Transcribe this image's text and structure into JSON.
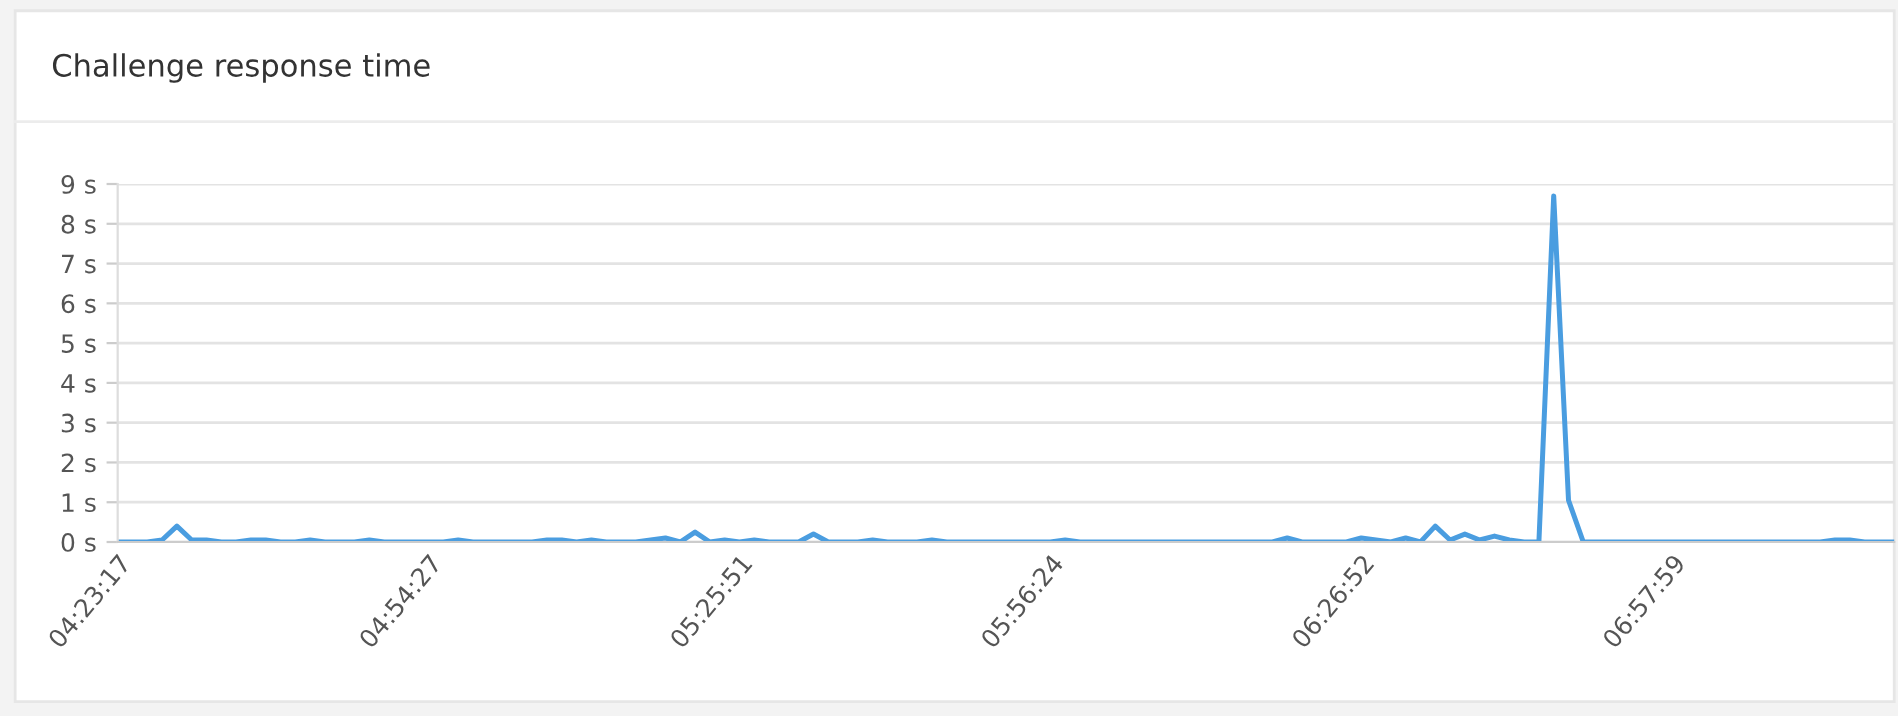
{
  "chart_data": {
    "type": "line",
    "title": "Challenge response time",
    "categories": [
      "04:23:17",
      null,
      null,
      null,
      null,
      null,
      null,
      null,
      null,
      null,
      null,
      null,
      null,
      null,
      null,
      null,
      null,
      null,
      null,
      null,
      null,
      "04:54:27",
      null,
      null,
      null,
      null,
      null,
      null,
      null,
      null,
      null,
      null,
      null,
      null,
      null,
      null,
      null,
      null,
      null,
      null,
      null,
      null,
      "05:25:51",
      null,
      null,
      null,
      null,
      null,
      null,
      null,
      null,
      null,
      null,
      null,
      null,
      null,
      null,
      null,
      null,
      null,
      null,
      null,
      null,
      "05:56:24",
      null,
      null,
      null,
      null,
      null,
      null,
      null,
      null,
      null,
      null,
      null,
      null,
      null,
      null,
      null,
      null,
      null,
      null,
      null,
      null,
      "06:26:52",
      null,
      null,
      null,
      null,
      null,
      null,
      null,
      null,
      null,
      null,
      null,
      null,
      null,
      null,
      null,
      null,
      null,
      null,
      null,
      null,
      "06:57:59",
      null,
      null,
      null,
      null,
      null,
      null,
      null,
      null,
      null,
      null,
      null,
      null,
      null,
      null,
      null
    ],
    "series": [
      {
        "color": "#4a9de0",
        "values": [
          0,
          0,
          0,
          0.05,
          0.4,
          0.05,
          0.05,
          0,
          0,
          0.05,
          0.05,
          0,
          0,
          0.05,
          0,
          0,
          0,
          0.05,
          0,
          0,
          0,
          0,
          0,
          0.05,
          0,
          0,
          0,
          0,
          0,
          0.05,
          0.05,
          0,
          0.05,
          0,
          0,
          0,
          0.05,
          0.1,
          0,
          0.25,
          0,
          0.05,
          0,
          0.05,
          0,
          0,
          0,
          0.2,
          0,
          0,
          0,
          0.05,
          0,
          0,
          0,
          0.05,
          0,
          0,
          0,
          0,
          0,
          0,
          0,
          0,
          0.05,
          0,
          0,
          0,
          0,
          0,
          0,
          0,
          0,
          0,
          0,
          0,
          0,
          0,
          0,
          0.1,
          0,
          0,
          0,
          0,
          0.1,
          0.05,
          0,
          0.1,
          0,
          0.4,
          0.05,
          0.2,
          0.05,
          0.15,
          0.05,
          0,
          0,
          8.7,
          1.05,
          0,
          0,
          0,
          0,
          0,
          0,
          0,
          0,
          0,
          0,
          0,
          0,
          0,
          0,
          0,
          0,
          0,
          0.05,
          0.05,
          0,
          0,
          0
        ]
      }
    ],
    "ylim": [
      0,
      9
    ],
    "yticks": [
      {
        "value": 0,
        "label": "0 s"
      },
      {
        "value": 1,
        "label": "1 s"
      },
      {
        "value": 2,
        "label": "2 s"
      },
      {
        "value": 3,
        "label": "3 s"
      },
      {
        "value": 4,
        "label": "4 s"
      },
      {
        "value": 5,
        "label": "5 s"
      },
      {
        "value": 6,
        "label": "6 s"
      },
      {
        "value": 7,
        "label": "7 s"
      },
      {
        "value": 8,
        "label": "8 s"
      },
      {
        "value": 9,
        "label": "9 s"
      }
    ],
    "grid": "y",
    "marker": "none",
    "line_style": "solid",
    "legend": false
  }
}
